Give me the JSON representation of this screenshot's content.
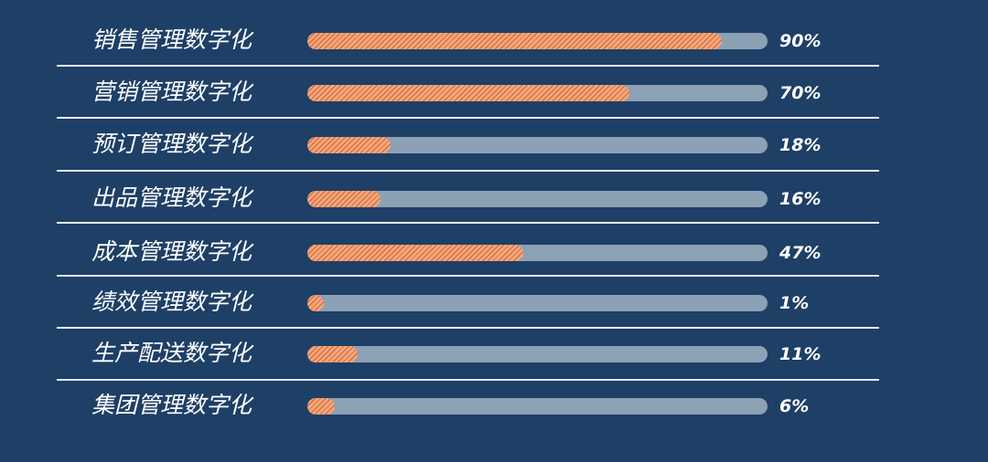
{
  "chart_data": {
    "type": "bar",
    "orientation": "horizontal",
    "categories": [
      "销售管理数字化",
      "营销管理数字化",
      "预订管理数字化",
      "出品管理数字化",
      "成本管理数字化",
      "绩效管理数字化",
      "生产配送数字化",
      "集团管理数字化"
    ],
    "values": [
      90,
      70,
      18,
      16,
      47,
      1,
      11,
      6
    ],
    "value_labels": [
      "90%",
      "70%",
      "18%",
      "16%",
      "47%",
      "1%",
      "11%",
      "6%"
    ],
    "xlim": [
      0,
      100
    ],
    "grid": false,
    "legend": "none",
    "colors": {
      "background": "#1e3f66",
      "track": "#8da1b5",
      "fill": "#f29d6d",
      "fill_stripe": "#c7653e",
      "text": "#ffffff",
      "divider": "#e8eef5"
    }
  }
}
